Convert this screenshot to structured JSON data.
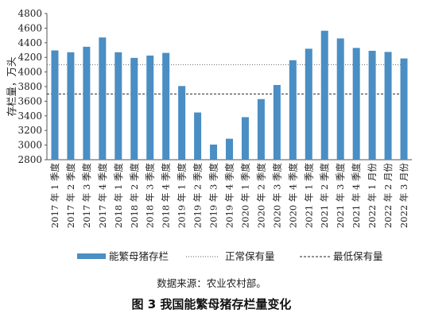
{
  "chart_data": {
    "type": "bar",
    "title": "",
    "xlabel": "",
    "ylabel": "存栏量，万头",
    "ylim": [
      2800,
      4800
    ],
    "yticks": [
      2800,
      3000,
      3200,
      3400,
      3600,
      3800,
      4000,
      4200,
      4400,
      4600,
      4800
    ],
    "grid": false,
    "legend_position": "bottom",
    "categories": [
      "2017年1季度",
      "2017年2季度",
      "2017年3季度",
      "2017年4季度",
      "2018年1季度",
      "2018年2季度",
      "2018年3季度",
      "2018年4季度",
      "2019年1季度",
      "2019年2季度",
      "2019年3季度",
      "2019年4季度",
      "2020年1季度",
      "2020年2季度",
      "2020年3季度",
      "2020年4季度",
      "2021年1季度",
      "2021年2季度",
      "2021年3季度",
      "2021年4季度",
      "2022年1月份",
      "2022年2月份",
      "2022年3月份"
    ],
    "series": [
      {
        "name": "能繁母猪存栏",
        "color": "#4a8ec4",
        "values": [
          4295,
          4270,
          4345,
          4472,
          4270,
          4193,
          4225,
          4261,
          3808,
          3446,
          3007,
          3087,
          3382,
          3629,
          3822,
          4161,
          4318,
          4564,
          4459,
          4329,
          4290,
          4274,
          4185
        ]
      }
    ],
    "reference_lines": [
      {
        "name": "正常保有量",
        "value": 4100,
        "style": "dotted"
      },
      {
        "name": "最低保有量",
        "value": 3700,
        "style": "dashed"
      }
    ],
    "source_note": "数据来源：农业农村部。",
    "caption": "图 3  我国能繁母猪存栏量变化"
  }
}
